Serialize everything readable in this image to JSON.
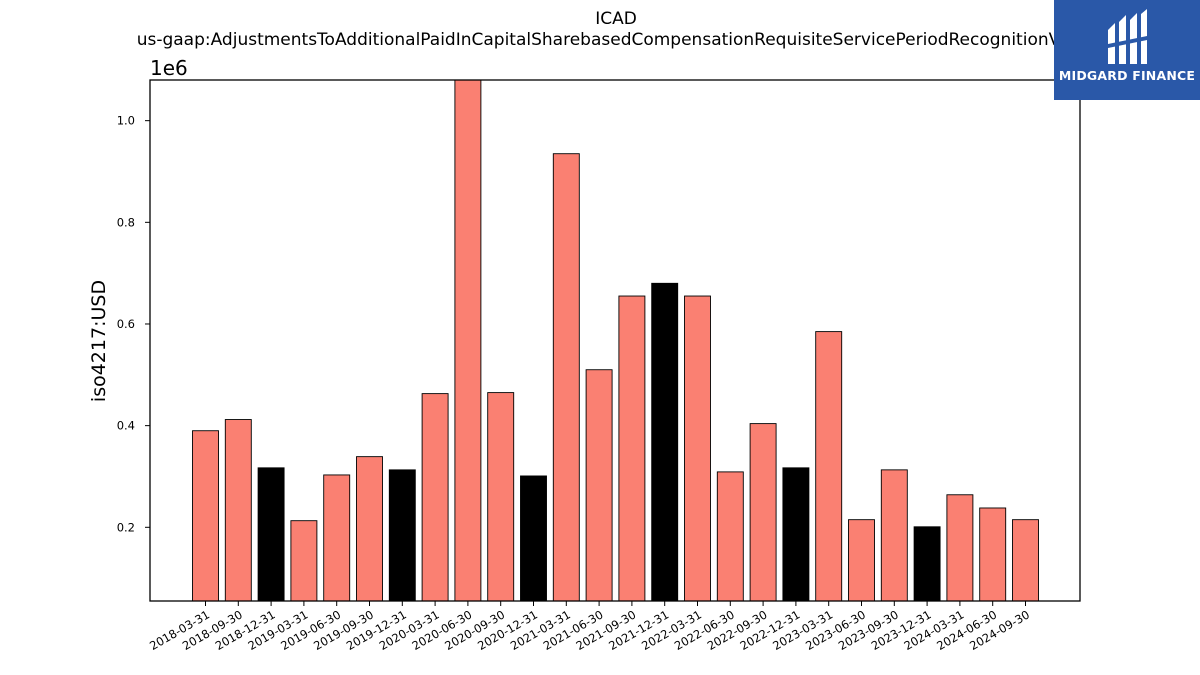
{
  "chart_data": {
    "type": "bar",
    "title": "ICAD",
    "subtitle": "us-gaap:AdjustmentsToAdditionalPaidInCapitalSharebasedCompensationRequisiteServicePeriodRecognitionValue",
    "xlabel": "",
    "ylabel": "iso4217:USD",
    "offset_text": "1e6",
    "ylim": [
      0.055,
      1.08
    ],
    "yticks": [
      "0.2",
      "0.4",
      "0.6",
      "0.8",
      "1.0"
    ],
    "ytick_values": [
      0.2,
      0.4,
      0.6,
      0.8,
      1.0
    ],
    "grid": false,
    "legend": "none",
    "categories": [
      "2018-03-31",
      "2018-09-30",
      "2018-12-31",
      "2019-03-31",
      "2019-06-30",
      "2019-09-30",
      "2019-12-31",
      "2020-03-31",
      "2020-06-30",
      "2020-09-30",
      "2020-12-31",
      "2021-03-31",
      "2021-06-30",
      "2021-09-30",
      "2021-12-31",
      "2022-03-31",
      "2022-06-30",
      "2022-09-30",
      "2022-12-31",
      "2023-03-31",
      "2023-06-30",
      "2023-09-30",
      "2023-12-31",
      "2024-03-31",
      "2024-06-30",
      "2024-09-30"
    ],
    "values": [
      0.39,
      0.412,
      0.317,
      0.213,
      0.303,
      0.339,
      0.313,
      0.463,
      1.085,
      0.465,
      0.301,
      0.935,
      0.51,
      0.655,
      0.68,
      0.655,
      0.309,
      0.404,
      0.317,
      0.585,
      0.215,
      0.313,
      0.201,
      0.264,
      0.238,
      0.215
    ],
    "highlight": [
      false,
      false,
      true,
      false,
      false,
      false,
      true,
      false,
      false,
      false,
      true,
      false,
      false,
      false,
      true,
      false,
      false,
      false,
      true,
      false,
      false,
      false,
      true,
      false,
      false,
      false
    ],
    "colors": {
      "bar": "#fa8072",
      "highlight": "#000000",
      "edge": "#000000"
    }
  },
  "logo": {
    "text": "MIDGARD FINANCE",
    "bg": "#2a58a8"
  }
}
